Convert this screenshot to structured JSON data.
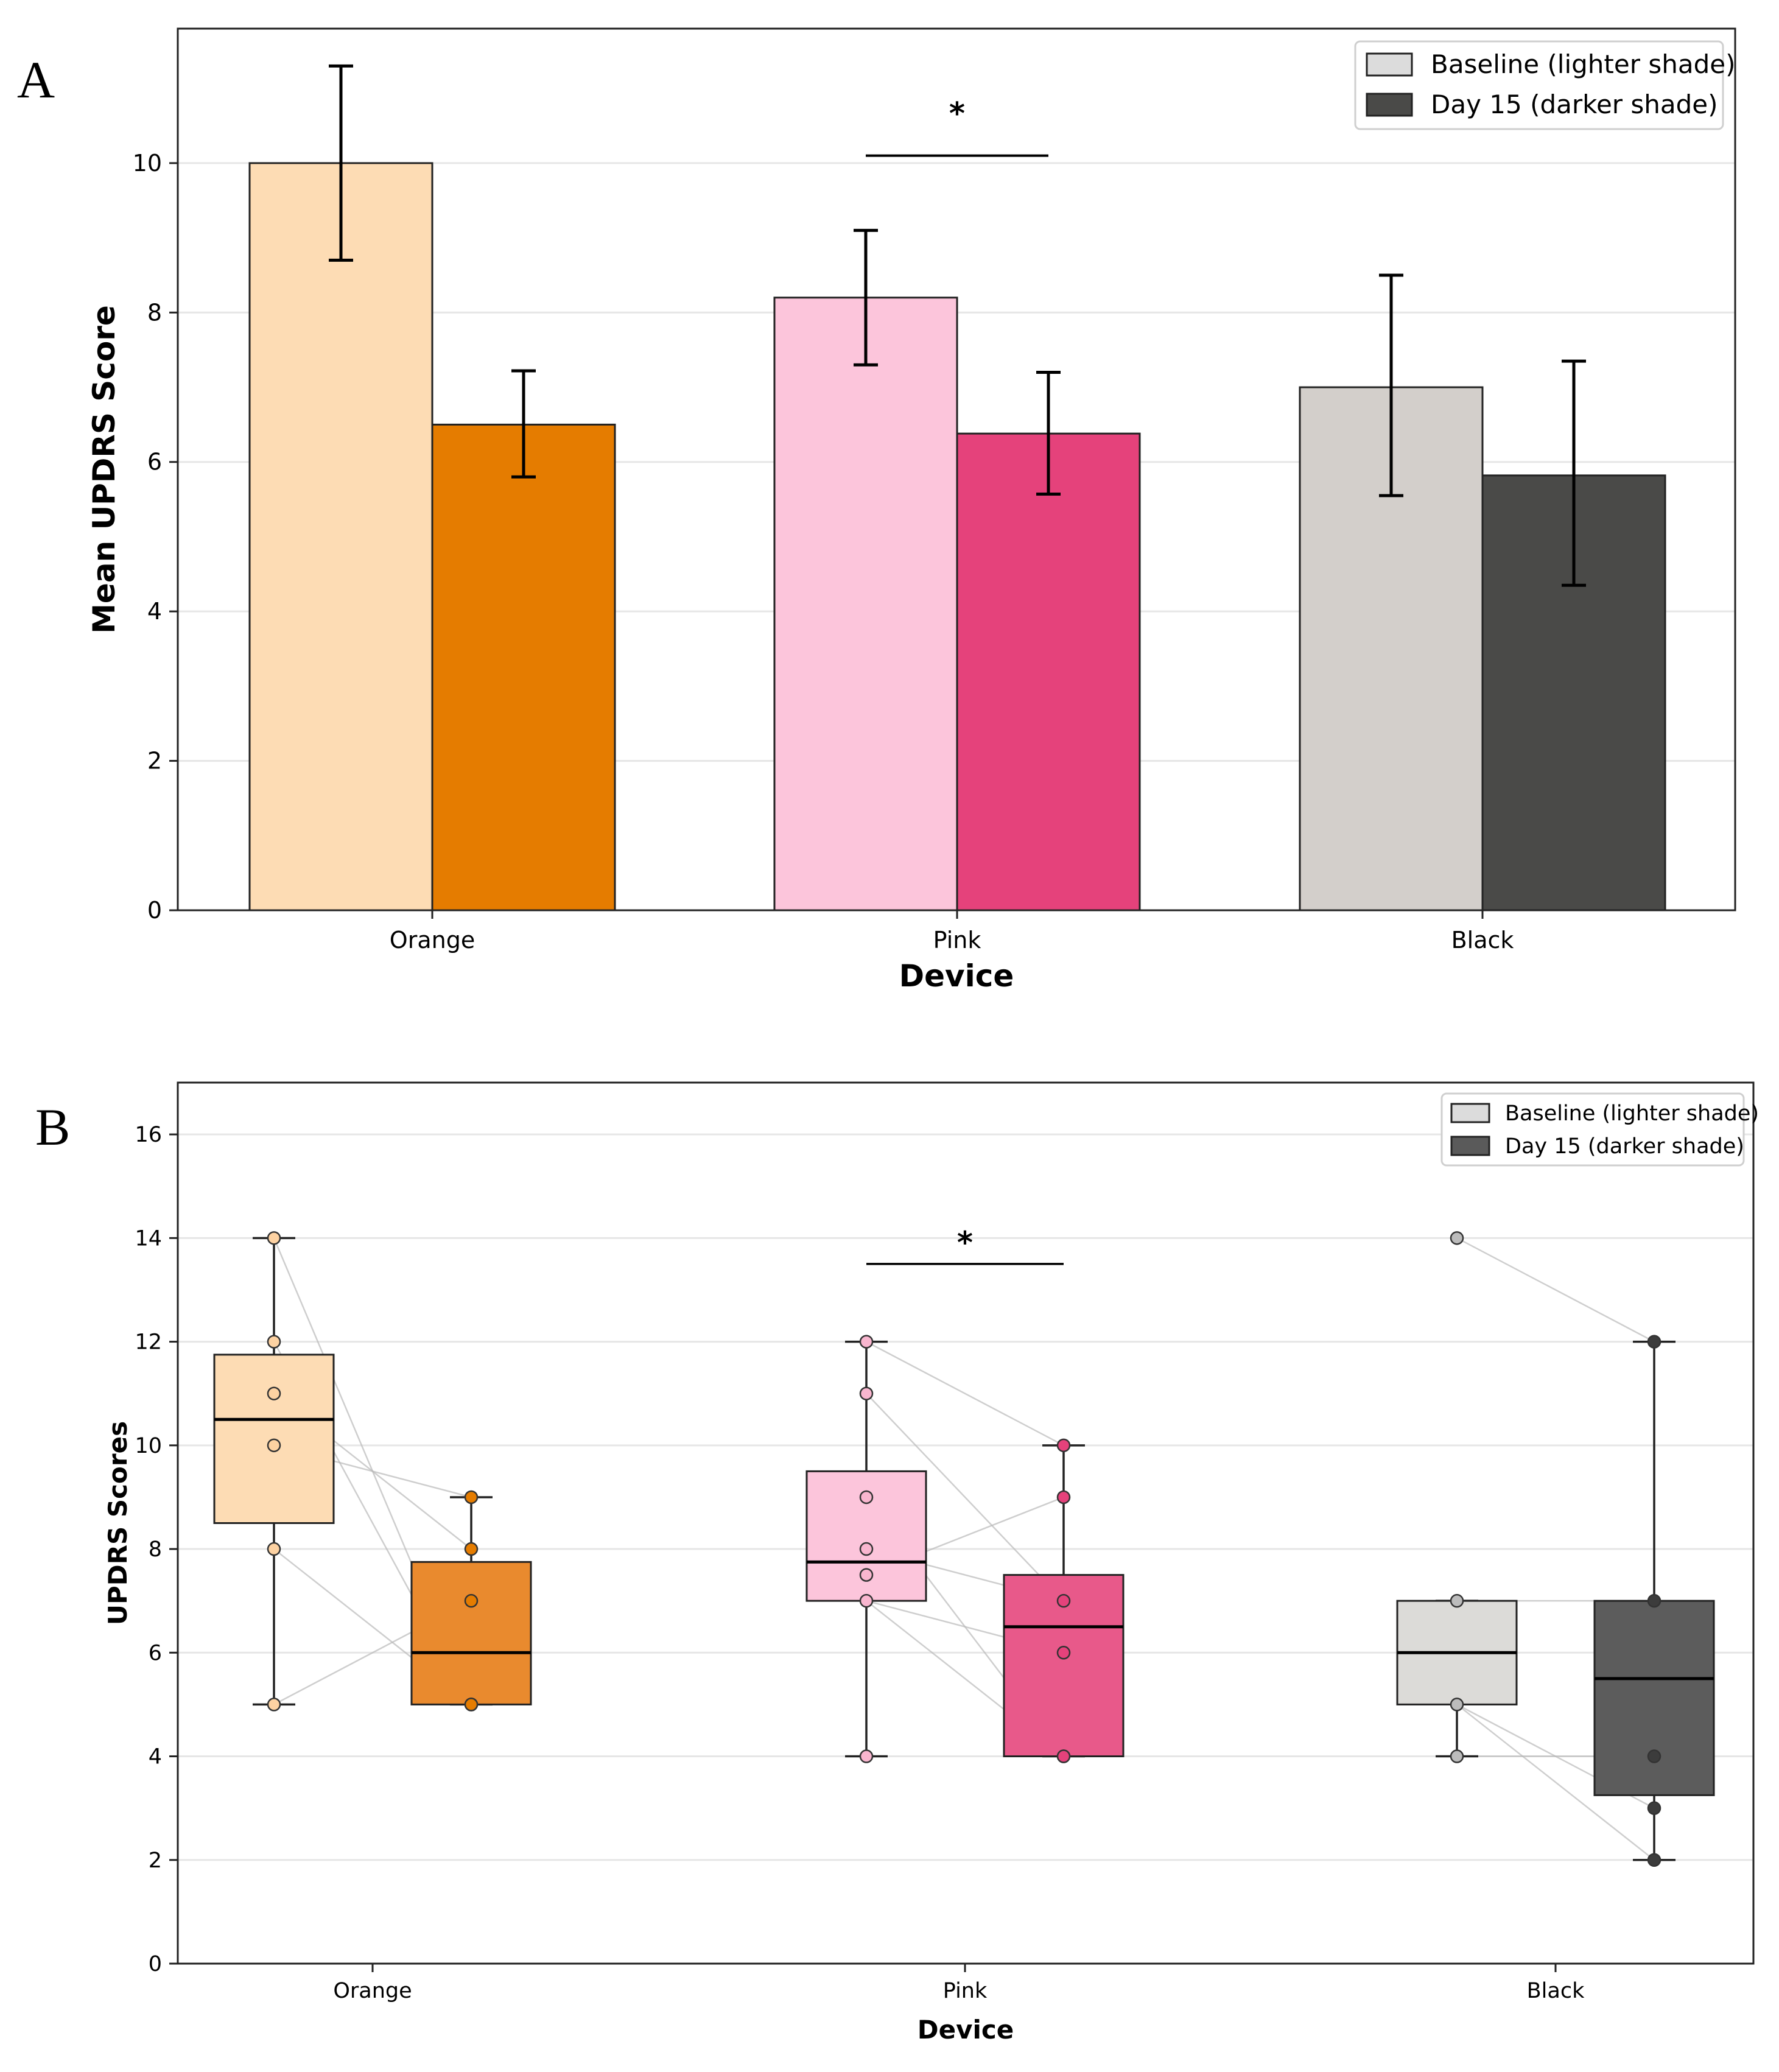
{
  "chart_data": [
    {
      "panel": "A",
      "type": "bar",
      "xlabel": "Device",
      "ylabel": "Mean UPDRS Score",
      "categories": [
        "Orange",
        "Pink",
        "Black"
      ],
      "ylim": [
        0,
        11.8
      ],
      "yticks": [
        0,
        2,
        4,
        6,
        8,
        10
      ],
      "grid": "horizontal",
      "legend_position": "top-right",
      "legend": [
        {
          "label": "Baseline (lighter shade)",
          "color": "#dcdcdc"
        },
        {
          "label": "Day 15 (darker shade)",
          "color": "#4a4a48"
        }
      ],
      "series": [
        {
          "name": "Baseline (lighter shade)",
          "values": [
            10.0,
            8.2,
            7.0
          ],
          "error_low": [
            8.7,
            7.3,
            5.55
          ],
          "error_high": [
            11.3,
            9.1,
            8.5
          ],
          "colors": [
            "#fddcb4",
            "#fcc5db",
            "#d3cfcb"
          ]
        },
        {
          "name": "Day 15 (darker shade)",
          "values": [
            6.5,
            6.38,
            5.82
          ],
          "error_low": [
            5.8,
            5.57,
            4.35
          ],
          "error_high": [
            7.22,
            7.2,
            7.35
          ],
          "colors": [
            "#e57c00",
            "#e5427b",
            "#4a4a48"
          ]
        }
      ],
      "annotations": [
        {
          "category": "Pink",
          "text": "*",
          "y": 10.1
        }
      ]
    },
    {
      "panel": "B",
      "type": "box",
      "xlabel": "Device",
      "ylabel": "UPDRS Scores",
      "categories": [
        "Orange",
        "Pink",
        "Black"
      ],
      "ylim": [
        0,
        17
      ],
      "yticks": [
        0,
        2,
        4,
        6,
        8,
        10,
        12,
        14,
        16
      ],
      "grid": "horizontal",
      "legend_position": "top-right",
      "legend": [
        {
          "label": "Baseline (lighter shade)",
          "color": "#dcdcdc"
        },
        {
          "label": "Day 15 (darker shade)",
          "color": "#5a5a5a"
        }
      ],
      "groups": [
        {
          "category": "Orange",
          "baseline": {
            "whisker_low": 5,
            "q1": 8.5,
            "median": 10.5,
            "q3": 11.75,
            "whisker_high": 14,
            "points": [
              14,
              12,
              11,
              10,
              8,
              5
            ],
            "box_color": "#fddcb4",
            "point_color": "#fdd2a2"
          },
          "day15": {
            "whisker_low": 5,
            "q1": 5,
            "median": 6,
            "q3": 7.75,
            "whisker_high": 9,
            "points": [
              9,
              8,
              7,
              5,
              5,
              5
            ],
            "box_color": "#e98a2e",
            "point_color": "#e57c00"
          }
        },
        {
          "category": "Pink",
          "baseline": {
            "whisker_low": 4,
            "q1": 7,
            "median": 7.75,
            "q3": 9.5,
            "whisker_high": 12,
            "points": [
              12,
              11,
              9,
              8,
              7.5,
              7,
              4
            ],
            "box_color": "#fcc5db",
            "point_color": "#f9b6cf"
          },
          "day15": {
            "whisker_low": 4,
            "q1": 4,
            "median": 6.5,
            "q3": 7.5,
            "whisker_high": 10,
            "points": [
              10,
              9,
              7,
              6,
              4,
              4
            ],
            "box_color": "#e8598a",
            "point_color": "#e5427b"
          }
        },
        {
          "category": "Black",
          "baseline": {
            "whisker_low": 4,
            "q1": 5,
            "median": 6,
            "q3": 7,
            "whisker_high": 7,
            "points": [
              14,
              7,
              5,
              4
            ],
            "box_color": "#dcdbd8",
            "point_color": "#bcbcbc"
          },
          "day15": {
            "whisker_low": 2,
            "q1": 3.25,
            "median": 5.5,
            "q3": 7,
            "whisker_high": 12,
            "points": [
              12,
              7,
              4,
              3,
              2
            ],
            "box_color": "#5c5c5c",
            "point_color": "#3c3c3c"
          }
        }
      ],
      "paired_lines": [
        {
          "category": "Orange",
          "pairs": [
            [
              14,
              5
            ],
            [
              12,
              5
            ],
            [
              11,
              8
            ],
            [
              10,
              9
            ],
            [
              8,
              5
            ],
            [
              5,
              7
            ]
          ]
        },
        {
          "category": "Pink",
          "pairs": [
            [
              12,
              10
            ],
            [
              11,
              7
            ],
            [
              9,
              4
            ],
            [
              8,
              7
            ],
            [
              7.5,
              9
            ],
            [
              7,
              6
            ],
            [
              7,
              4
            ]
          ]
        },
        {
          "category": "Black",
          "pairs": [
            [
              14,
              12
            ],
            [
              7,
              7
            ],
            [
              5,
              3
            ],
            [
              5,
              2
            ],
            [
              4,
              4
            ]
          ]
        }
      ],
      "annotations": [
        {
          "category": "Pink",
          "text": "*",
          "y": 13.5
        }
      ]
    }
  ],
  "figure": {
    "panel_a_label": "A",
    "panel_b_label": "B"
  }
}
